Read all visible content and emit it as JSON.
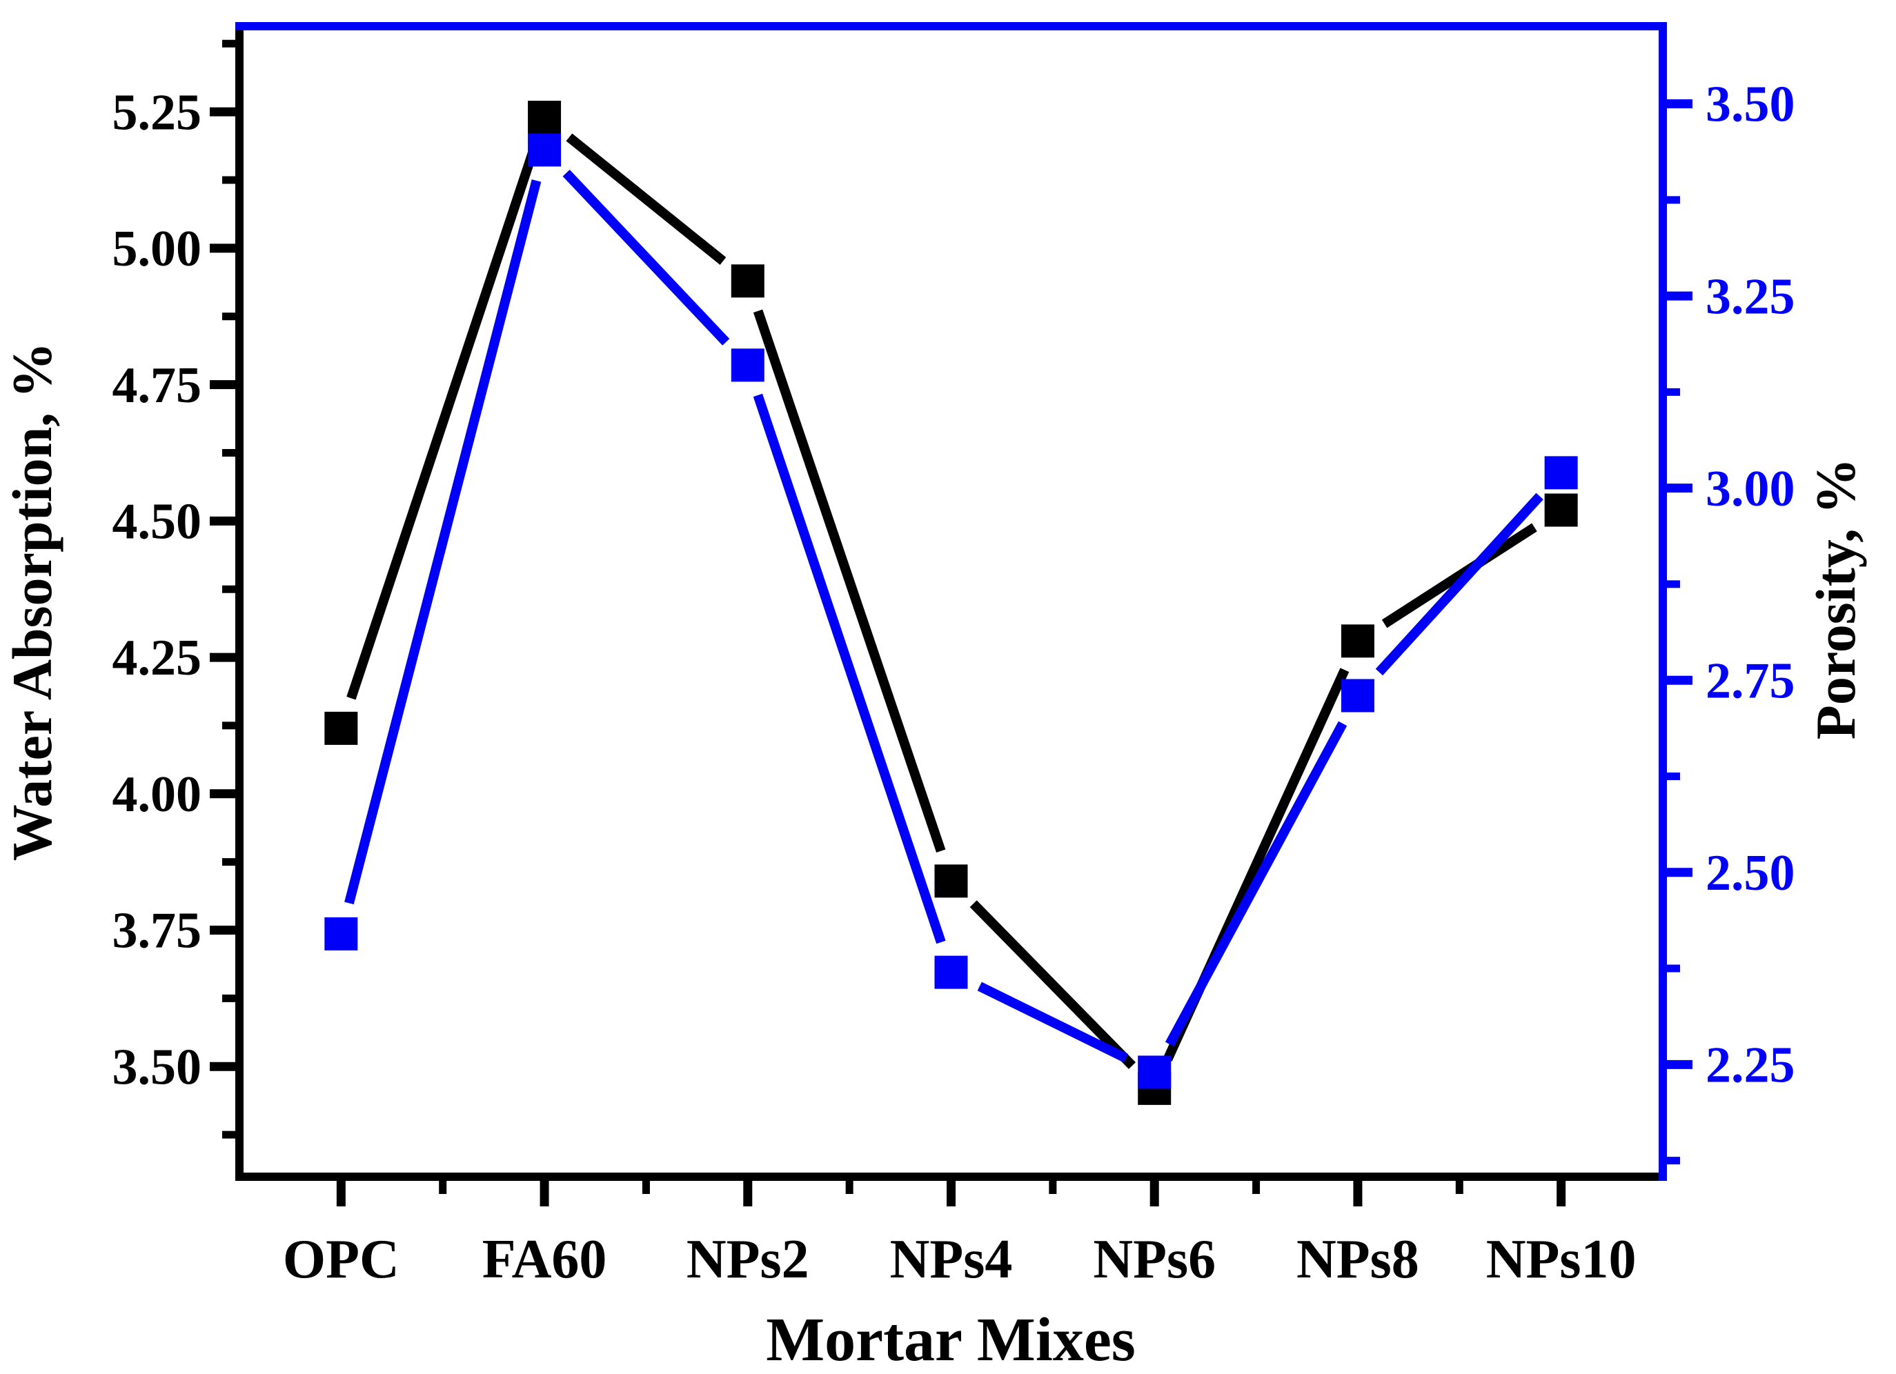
{
  "chart_data": {
    "type": "line",
    "title": "",
    "xlabel": "Mortar Mixes",
    "ylabel_left": "Water Absorption, %",
    "ylabel_right": "Porosity, %",
    "categories": [
      "OPC",
      "FA60",
      "NPs2",
      "NPs4",
      "NPs6",
      "NPs8",
      "NPs10"
    ],
    "series": [
      {
        "name": "Water Absorption, %",
        "axis": "left",
        "color": "#000000",
        "marker": "square",
        "values": [
          4.12,
          5.24,
          4.94,
          3.84,
          3.46,
          4.28,
          4.52
        ]
      },
      {
        "name": "Porosity, %",
        "axis": "right",
        "color": "#0000FA",
        "marker": "square",
        "values": [
          2.42,
          3.44,
          3.16,
          2.37,
          2.24,
          2.73,
          3.02
        ]
      }
    ],
    "y_left": {
      "min": 3.298,
      "max": 5.407,
      "ticks": [
        5.25,
        5.0,
        4.75,
        4.5,
        4.25,
        4.0,
        3.75,
        3.5
      ],
      "tick_labels": [
        "5.25",
        "5.00",
        "4.75",
        "4.50",
        "4.25",
        "4.00",
        "3.75",
        "3.50"
      ],
      "minor_ticks": [
        5.375,
        5.125,
        4.875,
        4.625,
        4.375,
        4.125,
        3.875,
        3.625,
        3.375
      ]
    },
    "y_right": {
      "min": 2.104,
      "max": 3.601,
      "ticks": [
        3.5,
        3.25,
        3.0,
        2.75,
        2.5,
        2.25
      ],
      "tick_labels": [
        "3.50",
        "3.25",
        "3.00",
        "2.75",
        "2.50",
        "2.25"
      ],
      "minor_ticks": [
        3.375,
        3.125,
        2.875,
        2.625,
        2.375,
        2.125
      ]
    },
    "grid": false,
    "legend": "none",
    "layout_hints": {
      "left_axis_color": "#000000",
      "right_axis_color": "#0000FA",
      "top_border_color": "#0000FA",
      "bottom_border_color": "#000000",
      "background": "#FFFFFF"
    }
  }
}
